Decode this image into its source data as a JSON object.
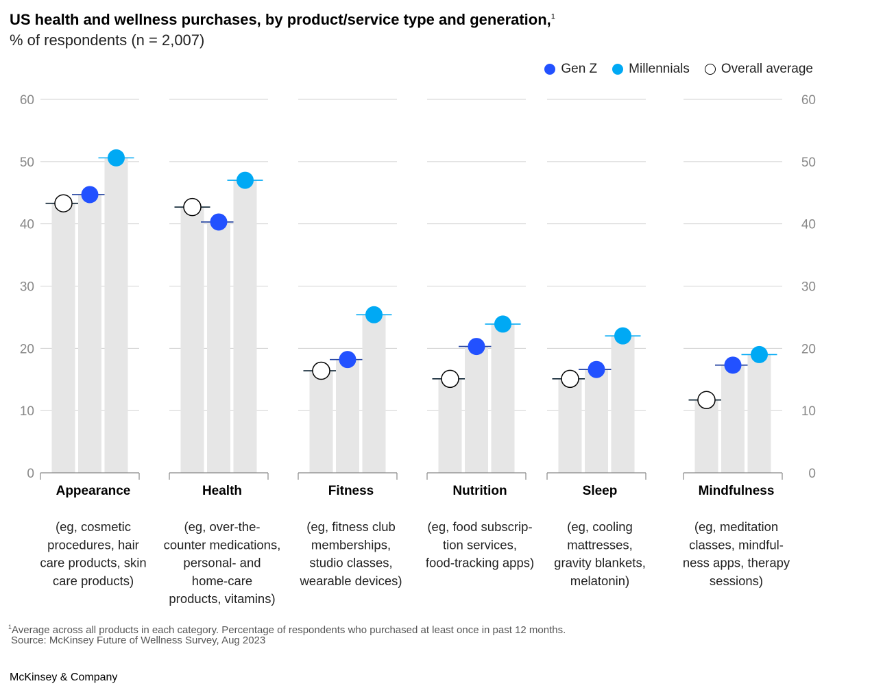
{
  "header": {
    "title": "US health and wellness purchases, by product/service type and generation,",
    "title_footnote_marker": "1",
    "subtitle": "% of respondents (n = 2,007)"
  },
  "legend": [
    {
      "name": "Gen Z",
      "color": "#2251ff",
      "style": "filled"
    },
    {
      "name": "Millennials",
      "color": "#00a9f4",
      "style": "filled"
    },
    {
      "name": "Overall average",
      "color": "#ffffff",
      "style": "outline"
    }
  ],
  "chart_data": {
    "type": "bar",
    "ylim": [
      0,
      60
    ],
    "yticks": [
      0,
      10,
      20,
      30,
      40,
      50,
      60
    ],
    "grid": true,
    "legend_position": "top-right",
    "categories": [
      {
        "name": "Appearance",
        "description": "(eg, cosmetic procedures, hair care products, skin care products)",
        "desc_lines": [
          "(eg, cosmetic",
          "procedures, hair",
          "care products, skin",
          "care products)"
        ]
      },
      {
        "name": "Health",
        "description": "(eg, over-the-counter medications, personal- and home-care products, vitamins)",
        "desc_lines": [
          "(eg, over-the-",
          "counter medications,",
          "personal- and",
          "home-care",
          "products, vitamins)"
        ]
      },
      {
        "name": "Fitness",
        "description": "(eg, fitness club memberships, studio classes, wearable devices)",
        "desc_lines": [
          "(eg, fitness club",
          "memberships,",
          "studio classes,",
          "wearable devices)"
        ]
      },
      {
        "name": "Nutrition",
        "description": "(eg, food subscription services, food-tracking apps)",
        "desc_lines": [
          "(eg, food subscrip-",
          "tion services,",
          "food-tracking apps)"
        ]
      },
      {
        "name": "Sleep",
        "description": "(eg, cooling mattresses, gravity blankets, melatonin)",
        "desc_lines": [
          "(eg, cooling",
          "mattresses,",
          "gravity blankets,",
          "melatonin)"
        ]
      },
      {
        "name": "Mindfulness",
        "description": "(eg, meditation classes, mindfulness apps, therapy sessions)",
        "desc_lines": [
          "(eg, meditation",
          "classes, mindful-",
          "ness apps, therapy",
          "sessions)"
        ]
      }
    ],
    "series": [
      {
        "name": "Overall average",
        "color": "#ffffff",
        "line_color": "#051c2c",
        "values": [
          43.3,
          42.7,
          16.4,
          15.1,
          15.1,
          11.7
        ]
      },
      {
        "name": "Gen Z",
        "color": "#2251ff",
        "line_color": "#1f3f9e",
        "values": [
          44.7,
          40.3,
          18.2,
          20.3,
          16.6,
          17.3
        ]
      },
      {
        "name": "Millennials",
        "color": "#00a9f4",
        "line_color": "#00a9f4",
        "values": [
          50.6,
          47.0,
          25.4,
          23.9,
          22.0,
          19.0
        ]
      }
    ]
  },
  "footnotes": {
    "marker": "1",
    "note": "Average across all products in each category. Percentage of respondents who purchased at least once in past 12 months.",
    "source": "Source: McKinsey Future of Wellness Survey, Aug 2023"
  },
  "brand": "McKinsey & Company"
}
